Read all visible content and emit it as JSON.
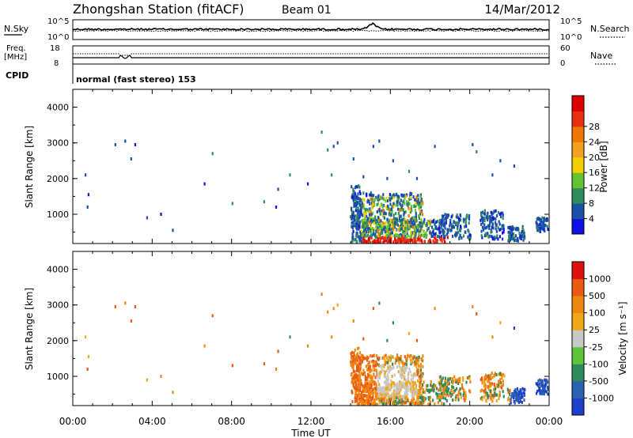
{
  "header": {
    "station": "Zhongshan Station (fitACF)",
    "beam": "Beam 01",
    "date": "14/Mar/2012"
  },
  "status_panels": {
    "noise": {
      "left_label": "N.Sky",
      "right_label": "N.Search",
      "left_ticks": [
        "10^5",
        "10^0"
      ],
      "right_ticks": [
        "10^5",
        "10^0"
      ]
    },
    "freq": {
      "left_label_line1": "Freq.",
      "left_label_line2": "[MHz]",
      "right_label": "Nave",
      "left_ticks": [
        "18",
        "8"
      ],
      "right_ticks": [
        "60",
        "0"
      ]
    },
    "cpid": {
      "label": "CPID",
      "text": "normal (fast stereo) 153"
    }
  },
  "chart_data": [
    {
      "type": "heatmap",
      "parameter": "power",
      "ylabel": "Slant Range [km]",
      "xlabel": "",
      "ylim": [
        180,
        4500
      ],
      "yticks": [
        "4000",
        "3000",
        "2000",
        "1000"
      ],
      "colorbar": {
        "label": "Power [dB]",
        "ticks": [
          "28",
          "24",
          "20",
          "16",
          "12",
          "8",
          "4"
        ],
        "colors": [
          "#1010e6",
          "#1b4fa8",
          "#2f8c5c",
          "#66c22e",
          "#f2d000",
          "#f2a020",
          "#f07800",
          "#e83010",
          "#e00000"
        ]
      }
    },
    {
      "type": "heatmap",
      "parameter": "velocity",
      "ylabel": "Slant Range [km]",
      "xlabel": "Time UT",
      "ylim": [
        180,
        4500
      ],
      "yticks": [
        "4000",
        "3000",
        "2000",
        "1000"
      ],
      "xticks": [
        "00:00",
        "04:00",
        "08:00",
        "12:00",
        "16:00",
        "20:00",
        "00:00"
      ],
      "colorbar": {
        "label": "Velocity [m s⁻¹]",
        "ticks": [
          "1000",
          "500",
          "100",
          "25",
          "-25",
          "-100",
          "-500",
          "-1000"
        ],
        "colors": [
          "#1f3fc8",
          "#2a62b0",
          "#2e8a5a",
          "#5ec23a",
          "#c8c8c8",
          "#f0a818",
          "#f08810",
          "#ec5a10",
          "#e01010"
        ]
      }
    }
  ]
}
